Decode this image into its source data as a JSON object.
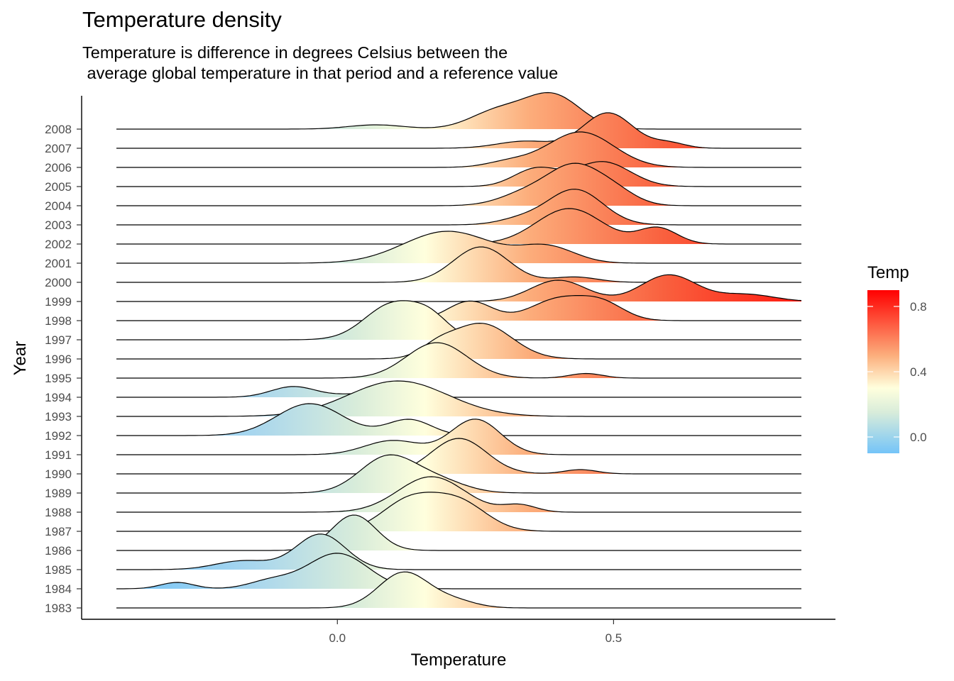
{
  "title": "Temperature density",
  "subtitle": "Temperature is difference in degrees Celsius between the\n average global temperature in that period and a reference value",
  "chart_data": {
    "type": "area",
    "subtype": "ridgeline-density",
    "xlabel": "Temperature",
    "ylabel": "Year",
    "x_ticks": [
      0.0,
      0.5
    ],
    "x_tick_labels": [
      "0.0",
      "0.5"
    ],
    "xlim": [
      -0.4,
      0.84
    ],
    "categories": [
      "1983",
      "1984",
      "1985",
      "1986",
      "1987",
      "1988",
      "1989",
      "1990",
      "1991",
      "1992",
      "1993",
      "1994",
      "1995",
      "1996",
      "1997",
      "1998",
      "1999",
      "2000",
      "2001",
      "2002",
      "2003",
      "2004",
      "2005",
      "2006",
      "2007",
      "2008"
    ],
    "series": [
      {
        "year": "1983",
        "peaks": [
          [
            0.12,
            0.045,
            1.0
          ],
          [
            0.21,
            0.04,
            0.2
          ]
        ]
      },
      {
        "year": "1984",
        "peaks": [
          [
            -0.29,
            0.03,
            0.18
          ],
          [
            -0.12,
            0.04,
            0.22
          ],
          [
            0.0,
            0.055,
            1.0
          ]
        ]
      },
      {
        "year": "1985",
        "peaks": [
          [
            -0.17,
            0.05,
            0.25
          ],
          [
            -0.03,
            0.045,
            1.0
          ]
        ]
      },
      {
        "year": "1986",
        "peaks": [
          [
            0.03,
            0.04,
            1.0
          ]
        ]
      },
      {
        "year": "1987",
        "peaks": [
          [
            0.13,
            0.05,
            0.85
          ],
          [
            0.22,
            0.05,
            0.8
          ]
        ]
      },
      {
        "year": "1988",
        "peaks": [
          [
            0.17,
            0.06,
            1.0
          ],
          [
            0.33,
            0.03,
            0.2
          ]
        ]
      },
      {
        "year": "1989",
        "peaks": [
          [
            0.09,
            0.05,
            1.0
          ],
          [
            0.18,
            0.05,
            0.35
          ]
        ]
      },
      {
        "year": "1990",
        "peaks": [
          [
            0.22,
            0.05,
            1.0
          ],
          [
            0.44,
            0.03,
            0.12
          ]
        ]
      },
      {
        "year": "1991",
        "peaks": [
          [
            0.1,
            0.05,
            0.4
          ],
          [
            0.25,
            0.045,
            1.0
          ]
        ]
      },
      {
        "year": "1992",
        "peaks": [
          [
            -0.05,
            0.06,
            0.9
          ],
          [
            0.13,
            0.04,
            0.45
          ]
        ]
      },
      {
        "year": "1993",
        "peaks": [
          [
            0.11,
            0.09,
            1.0
          ]
        ]
      },
      {
        "year": "1994",
        "peaks": [
          [
            -0.08,
            0.04,
            0.3
          ],
          [
            0.05,
            0.05,
            0.1
          ]
        ]
      },
      {
        "year": "1995",
        "peaks": [
          [
            0.18,
            0.055,
            1.0
          ],
          [
            0.45,
            0.03,
            0.13
          ]
        ]
      },
      {
        "year": "1996",
        "peaks": [
          [
            0.26,
            0.055,
            1.0
          ],
          [
            0.18,
            0.03,
            0.25
          ]
        ]
      },
      {
        "year": "1997",
        "peaks": [
          [
            0.1,
            0.05,
            1.0
          ],
          [
            0.17,
            0.035,
            0.5
          ]
        ]
      },
      {
        "year": "1998",
        "peaks": [
          [
            0.24,
            0.04,
            0.55
          ],
          [
            0.4,
            0.05,
            0.6
          ],
          [
            0.48,
            0.04,
            0.45
          ]
        ]
      },
      {
        "year": "1999",
        "peaks": [
          [
            0.4,
            0.05,
            0.6
          ],
          [
            0.6,
            0.05,
            0.75
          ],
          [
            0.74,
            0.05,
            0.2
          ]
        ]
      },
      {
        "year": "2000",
        "peaks": [
          [
            0.26,
            0.05,
            1.0
          ],
          [
            0.43,
            0.04,
            0.15
          ]
        ]
      },
      {
        "year": "2001",
        "peaks": [
          [
            0.2,
            0.08,
            0.9
          ],
          [
            0.38,
            0.05,
            0.45
          ]
        ]
      },
      {
        "year": "2002",
        "peaks": [
          [
            0.42,
            0.06,
            1.0
          ],
          [
            0.58,
            0.035,
            0.45
          ]
        ]
      },
      {
        "year": "2003",
        "peaks": [
          [
            0.43,
            0.05,
            1.0
          ],
          [
            0.33,
            0.04,
            0.15
          ]
        ]
      },
      {
        "year": "2004",
        "peaks": [
          [
            0.43,
            0.045,
            1.0
          ],
          [
            0.35,
            0.05,
            0.4
          ],
          [
            0.5,
            0.04,
            0.4
          ]
        ]
      },
      {
        "year": "2005",
        "peaks": [
          [
            0.36,
            0.04,
            0.5
          ],
          [
            0.48,
            0.05,
            0.7
          ]
        ]
      },
      {
        "year": "2006",
        "peaks": [
          [
            0.44,
            0.06,
            1.0
          ],
          [
            0.31,
            0.04,
            0.15
          ]
        ]
      },
      {
        "year": "2007",
        "peaks": [
          [
            0.49,
            0.045,
            1.0
          ],
          [
            0.6,
            0.03,
            0.15
          ],
          [
            0.34,
            0.05,
            0.2
          ]
        ]
      },
      {
        "year": "2008",
        "peaks": [
          [
            0.07,
            0.05,
            0.12
          ],
          [
            0.29,
            0.05,
            0.5
          ],
          [
            0.39,
            0.05,
            0.95
          ]
        ]
      }
    ],
    "legend": {
      "title": "Temp",
      "labels": [
        "0.8",
        "0.4",
        "0.0"
      ],
      "label_values": [
        0.8,
        0.4,
        0.0
      ],
      "range": [
        -0.1,
        0.9
      ],
      "colors": [
        "#74c4f8",
        "#ffffdd",
        "#fcae7c",
        "#ff1a10"
      ],
      "placement": "right"
    },
    "grid": false
  }
}
